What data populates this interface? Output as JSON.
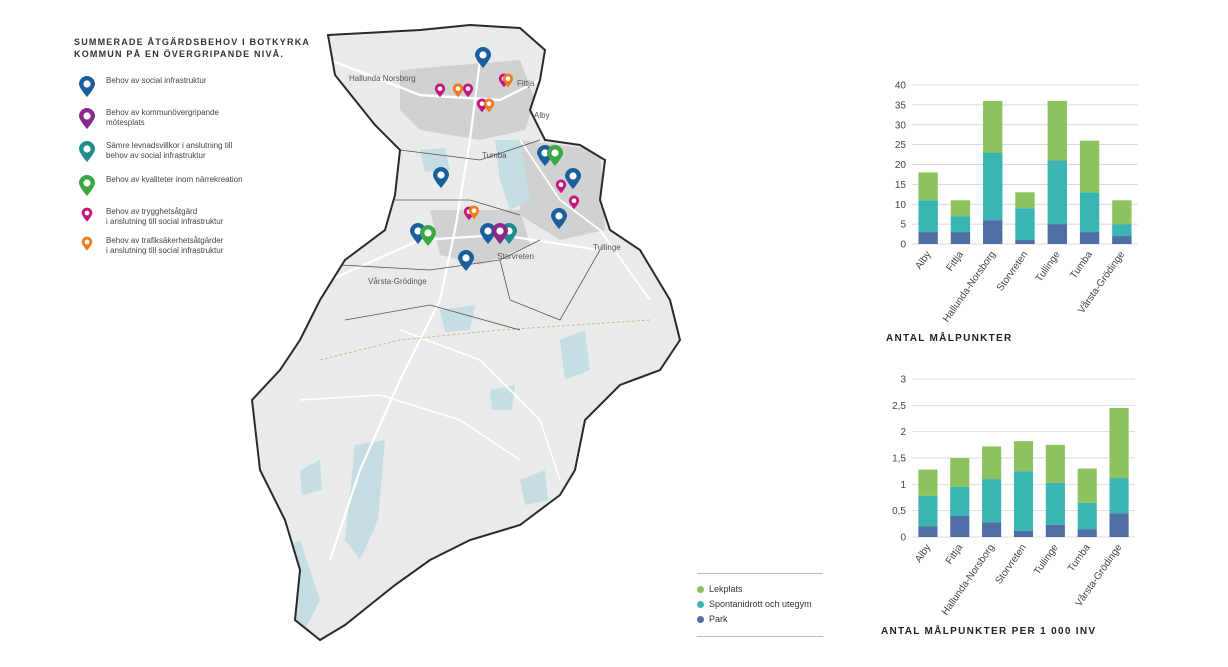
{
  "legend": {
    "title_lines": [
      "SUMMERADE ÅTGÄRDSBEHOV I BOTKYRKA",
      "KOMMUN PÅ EN ÖVERGRIPANDE NIVÅ."
    ],
    "items": [
      {
        "lines": [
          "Behov av social infrastruktur"
        ],
        "color": "#1a5e9e",
        "size": "large"
      },
      {
        "lines": [
          "Behov av kommunövergripande",
          "mötesplats"
        ],
        "color": "#8a2a8c",
        "size": "large"
      },
      {
        "lines": [
          "Sämre levnadsvillkor i anslutning till",
          "behov av social infrastruktur"
        ],
        "color": "#1f8c8e",
        "size": "large"
      },
      {
        "lines": [
          "Behov av kvaliteter inom närrekreation"
        ],
        "color": "#3aa845",
        "size": "large"
      },
      {
        "lines": [
          "Behov av trygghetsåtgärd",
          "i anslutning till social infrastruktur"
        ],
        "color": "#c4157a",
        "size": "small"
      },
      {
        "lines": [
          "Behov av trafiksäkerhetsåtgärder",
          "i anslutning till social infrastruktur"
        ],
        "color": "#f07a1e",
        "size": "small"
      }
    ]
  },
  "map": {
    "place_labels": [
      "Hallunda Norsborg",
      "Fittja",
      "Alby",
      "Tumba",
      "Storvreten",
      "Tullinge",
      "Vårsta-Grödinge"
    ],
    "colors": {
      "land": "#e8ebea",
      "water": "#c5dde3",
      "border": "#2a2a2a",
      "roads": "#ffffff",
      "urban": "#c9cccb"
    }
  },
  "categories": [
    {
      "name": "Lekplats",
      "color": "#8dc35e"
    },
    {
      "name": "Spontanidrott och utegym",
      "color": "#3bb4b4"
    },
    {
      "name": "Park",
      "color": "#4f6ea4"
    }
  ],
  "chart_data": [
    {
      "type": "bar",
      "stacked": true,
      "title": "ANTAL MÅLPUNKTER",
      "categories": [
        "Alby",
        "Fittja",
        "Hallunda-Norsborg",
        "Storvreten",
        "Tullinge",
        "Tumba",
        "Vårsta-Grödinge"
      ],
      "series": [
        {
          "name": "Park",
          "values": [
            3,
            3,
            6,
            1,
            5,
            3,
            2
          ]
        },
        {
          "name": "Spontanidrott och utegym",
          "values": [
            8,
            4,
            17,
            8,
            16,
            10,
            3
          ]
        },
        {
          "name": "Lekplats",
          "values": [
            7,
            4,
            13,
            4,
            15,
            13,
            6
          ]
        }
      ],
      "ylim": [
        0,
        40
      ],
      "yticks": [
        "0",
        "5",
        "10",
        "15",
        "20",
        "25",
        "30",
        "35",
        "40"
      ],
      "grid": true
    },
    {
      "type": "bar",
      "stacked": true,
      "title": "ANTAL MÅLPUNKTER PER 1 000 INV",
      "categories": [
        "Alby",
        "Fittja",
        "Hallunda-Norsborg",
        "Storvreten",
        "Tullinge",
        "Tumba",
        "Vårsta-Grödinge"
      ],
      "series": [
        {
          "name": "Park",
          "values": [
            0.2,
            0.4,
            0.28,
            0.12,
            0.23,
            0.15,
            0.45
          ]
        },
        {
          "name": "Spontanidrott och utegym",
          "values": [
            0.58,
            0.55,
            0.82,
            1.13,
            0.8,
            0.5,
            0.67
          ]
        },
        {
          "name": "Lekplats",
          "values": [
            0.5,
            0.55,
            0.62,
            0.57,
            0.72,
            0.65,
            1.33
          ]
        }
      ],
      "ylim": [
        0,
        3
      ],
      "yticks": [
        "0",
        "0,5",
        "1",
        "1,5",
        "2",
        "2,5",
        "3"
      ],
      "grid": true
    }
  ]
}
